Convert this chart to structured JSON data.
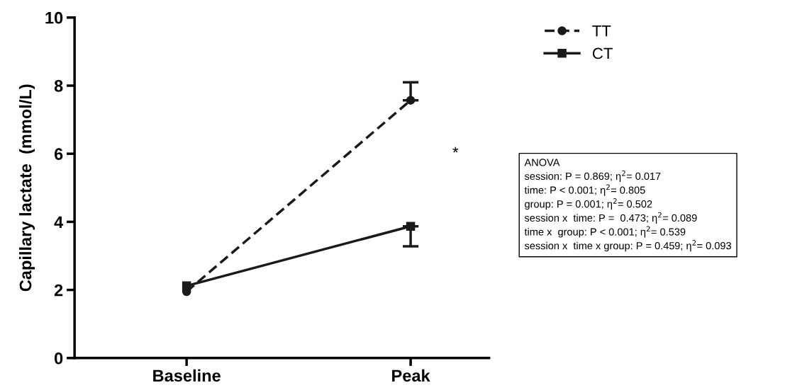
{
  "chart_data": {
    "type": "line",
    "ylabel": "Capillary lactate  (mmol/L)",
    "categories": [
      "Baseline",
      "Peak"
    ],
    "series": [
      {
        "name": "TT",
        "color": "#1a1a1a",
        "values": [
          1.95,
          7.57
        ],
        "errors": [
          null,
          [
            7.57,
            8.1
          ]
        ],
        "marker": "circle",
        "line_style": "dashed"
      },
      {
        "name": "CT",
        "color": "#1a1a1a",
        "values": [
          2.12,
          3.87
        ],
        "errors": [
          null,
          [
            3.28,
            3.87
          ]
        ],
        "marker": "square",
        "line_style": "solid"
      }
    ],
    "ylim": [
      0,
      10
    ],
    "yticks": [
      0,
      2,
      4,
      6,
      8,
      10
    ],
    "grid": false,
    "legend": "top right",
    "annotations": [
      "*",
      "ANOVA\nsession: P = 0.869; η$^{2}$= 0.017\ntime: P < 0.001; η$^{2}$= 0.805\ngroup: P = 0.001; η$^{2}$= 0.502\nsession x  time: P =  0.473; η$^{2}$= 0.089\ntime x  group: P < 0.001; η$^{2}$= 0.539\nsession x  time x group: P = 0.459; η$^{2}$= 0.093"
    ]
  }
}
